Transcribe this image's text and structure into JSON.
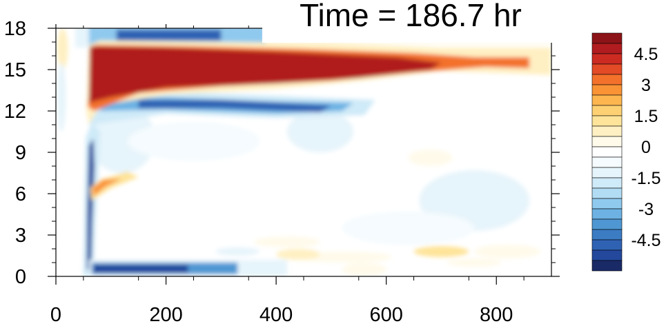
{
  "title": "Time = 186.7 hr",
  "chart_data": {
    "type": "heatmap",
    "title": "Time = 186.7 hr",
    "xlabel": "",
    "ylabel": "",
    "xlim": [
      0,
      900
    ],
    "ylim": [
      0,
      18
    ],
    "x_ticks": [
      "0",
      "200",
      "400",
      "600",
      "800"
    ],
    "x_tick_values": [
      0,
      200,
      400,
      600,
      800
    ],
    "y_ticks": [
      "0",
      "3",
      "6",
      "9",
      "12",
      "15",
      "18"
    ],
    "y_tick_values": [
      0,
      3,
      6,
      9,
      12,
      15,
      18
    ],
    "colorbar": {
      "placement": "right",
      "levels": [
        -5.5,
        -5,
        -4.5,
        -4,
        -3.5,
        -3,
        -2.5,
        -2,
        -1.5,
        -1,
        -0.5,
        0,
        0.5,
        1,
        1.5,
        2,
        2.5,
        3,
        3.5,
        4,
        4.5,
        5,
        5.5
      ],
      "labels": [
        "4.5",
        "3",
        "1.5",
        "0",
        "-1.5",
        "-3",
        "-4.5"
      ],
      "label_values": [
        4.5,
        3,
        1.5,
        0,
        -1.5,
        -3,
        -4.5
      ],
      "colors": [
        "#1a2a66",
        "#23489c",
        "#2f62b3",
        "#3b7cc3",
        "#4f97d3",
        "#6db2e3",
        "#8fc9ee",
        "#b2dcf4",
        "#cfeaf8",
        "#e6f4fb",
        "#f5fbfe",
        "#ffffff",
        "#fffaea",
        "#fff0c3",
        "#fee49a",
        "#fdd173",
        "#fcb54f",
        "#f99335",
        "#f3712b",
        "#e34a26",
        "#cc2b22",
        "#b01c1f",
        "#8c1418"
      ]
    },
    "features": [
      {
        "x": [
          60,
          900
        ],
        "y_center": 15.3,
        "value": "+5",
        "description": "strong positive band 12.5-17 narrowing after 650"
      },
      {
        "x": [
          60,
          560
        ],
        "y_center": 12.5,
        "value": "-4",
        "description": "negative band below positive band"
      },
      {
        "x": [
          30,
          380
        ],
        "y_center": 17.4,
        "value": "-3",
        "description": "negative band above positive band"
      },
      {
        "x": [
          55,
          80
        ],
        "y_center": 5,
        "value": "-5",
        "description": "vertical negative column"
      },
      {
        "x": [
          65,
          330
        ],
        "y_center": 0.6,
        "value": "-5",
        "description": "negative band near bottom"
      },
      {
        "x": [
          60,
          150
        ],
        "y_center": 6.5,
        "value": "+3",
        "description": "small positive patch"
      }
    ]
  }
}
